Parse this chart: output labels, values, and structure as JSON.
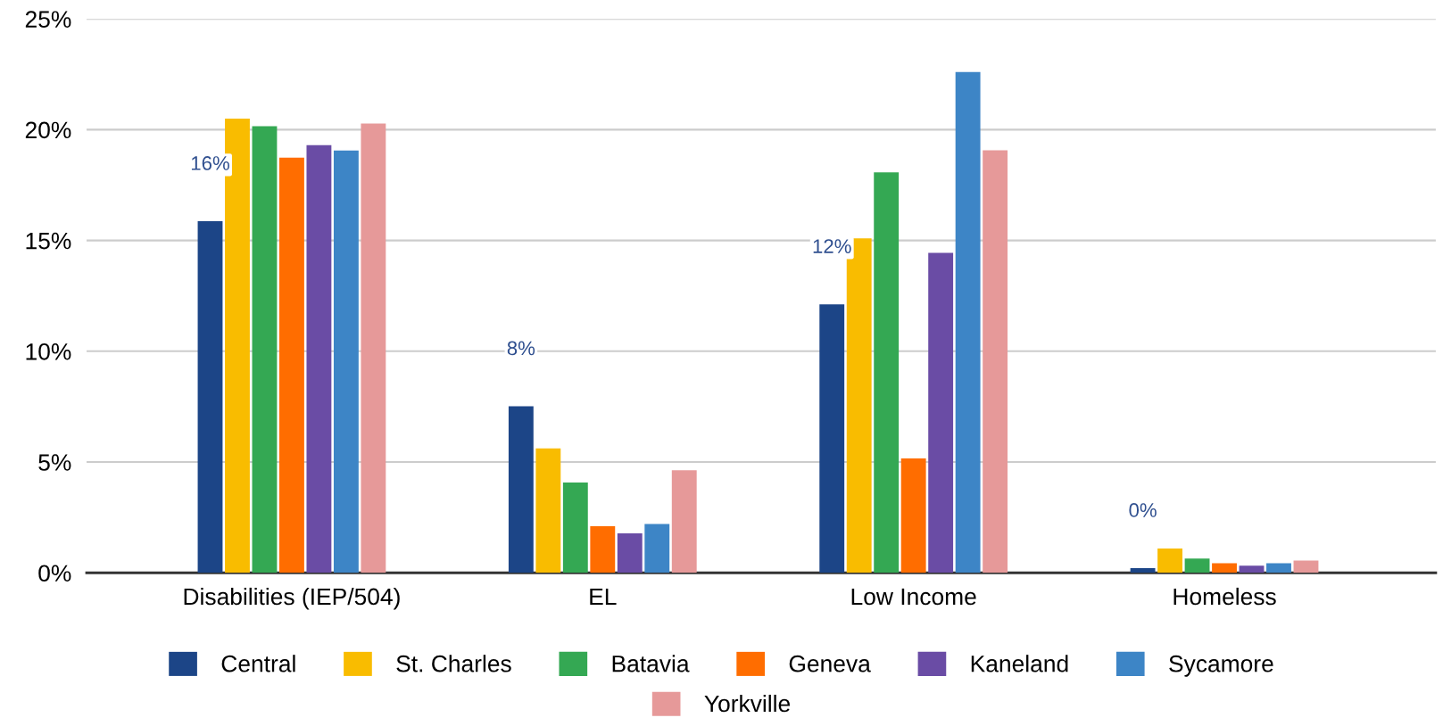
{
  "chart_data": {
    "type": "bar",
    "categories": [
      "Disabilities (IEP/504)",
      "EL",
      "Low Income",
      "Homeless"
    ],
    "series": [
      {
        "name": "Central",
        "color": "#1c4587",
        "values": [
          15.87,
          7.52,
          12.12,
          0.21
        ],
        "value_labels": [
          "16%",
          "8%",
          "12%",
          "0%"
        ]
      },
      {
        "name": "St. Charles",
        "color": "#f9bc00",
        "values": [
          20.5,
          5.62,
          15.09,
          1.1
        ]
      },
      {
        "name": "Batavia",
        "color": "#34a853",
        "values": [
          20.16,
          4.08,
          18.07,
          0.64
        ]
      },
      {
        "name": "Geneva",
        "color": "#ff6d00",
        "values": [
          18.74,
          2.1,
          5.16,
          0.43
        ]
      },
      {
        "name": "Kaneland",
        "color": "#6a4ca5",
        "values": [
          19.3,
          1.78,
          14.44,
          0.32
        ]
      },
      {
        "name": "Sycamore",
        "color": "#3d85c6",
        "values": [
          19.06,
          2.2,
          22.6,
          0.43
        ]
      },
      {
        "name": "Yorkville",
        "color": "#e69999",
        "values": [
          20.28,
          4.63,
          19.07,
          0.55
        ]
      }
    ],
    "ylim": [
      0,
      25
    ],
    "yticks": [
      {
        "value": 0,
        "label": "0%"
      },
      {
        "value": 5,
        "label": "5%"
      },
      {
        "value": 10,
        "label": "10%"
      },
      {
        "value": 15,
        "label": "15%"
      },
      {
        "value": 20,
        "label": "20%"
      },
      {
        "value": 25,
        "label": "25%"
      }
    ],
    "grid": "y",
    "legend": "bottom"
  }
}
